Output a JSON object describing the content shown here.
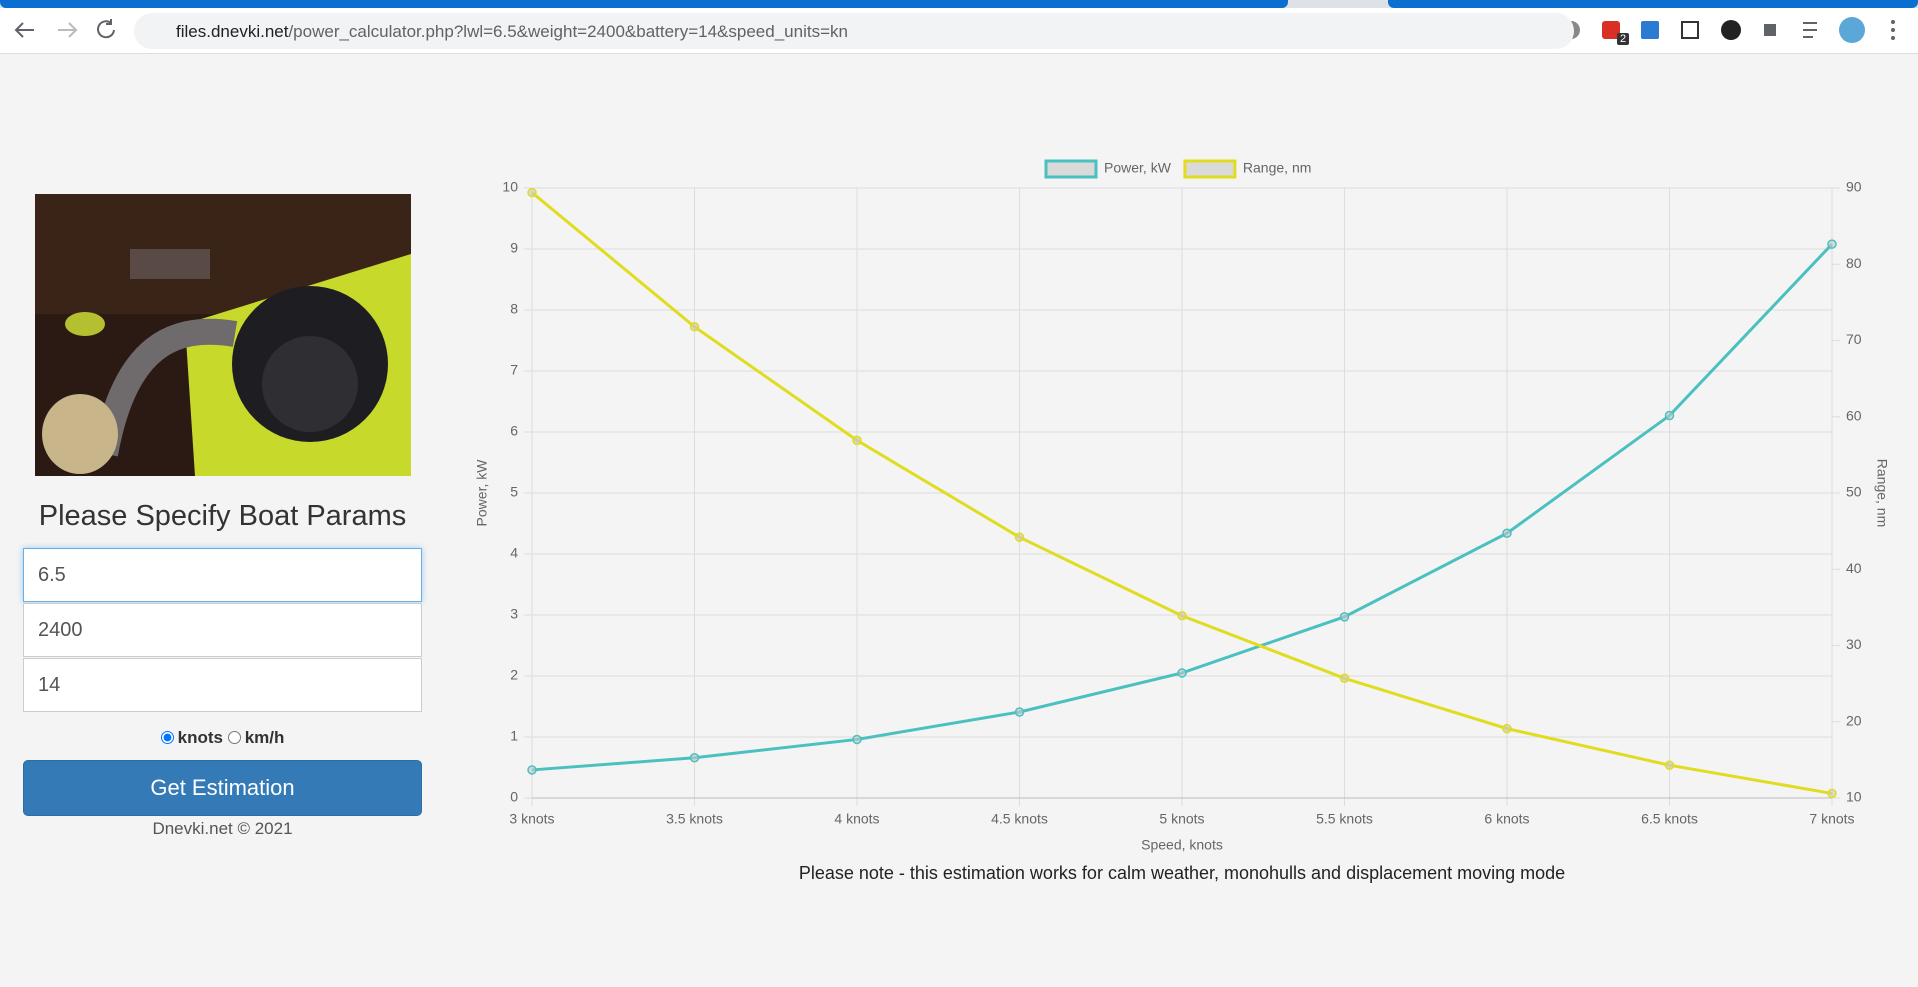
{
  "browser": {
    "url_host": "files.dnevki.net",
    "url_path": "/power_calculator.php?lwl=6.5&weight=2400&battery=14&speed_units=kn",
    "badge": "2"
  },
  "form": {
    "title": "Please Specify Boat Params",
    "inputs": [
      "6.5",
      "2400",
      "14"
    ],
    "units": [
      "knots",
      "km/h"
    ],
    "button": "Get Estimation",
    "footer": "Dnevki.net © 2021"
  },
  "chart_data": {
    "type": "line",
    "x_label": "Speed, knots",
    "y_label": "Power, kW",
    "y2_label": "Range, nm",
    "categories": [
      "3 knots",
      "3.5 knots",
      "4 knots",
      "4.5 knots",
      "5 knots",
      "5.5 knots",
      "6 knots",
      "6.5 knots",
      "7 knots"
    ],
    "series": [
      {
        "name": "Power, kW",
        "color": "#4bc0c0",
        "values": [
          0.46,
          0.66,
          0.96,
          1.41,
          2.05,
          2.97,
          4.34,
          6.27,
          9.08
        ]
      },
      {
        "name": "Range, nm",
        "color": "#e0dc1f",
        "axis": "y2",
        "values": [
          89.4,
          71.8,
          56.9,
          44.2,
          33.9,
          25.7,
          19.1,
          14.3,
          10.6
        ]
      }
    ],
    "ylim": [
      0,
      10
    ],
    "yticks": [
      0,
      1,
      2,
      3,
      4,
      5,
      6,
      7,
      8,
      9,
      10
    ],
    "y2lim": [
      10,
      90
    ],
    "y2ticks": [
      10,
      20,
      30,
      40,
      50,
      60,
      70,
      80,
      90
    ],
    "grid": true
  },
  "note": "Please note - this estimation works for calm weather, monohulls and displacement moving mode"
}
